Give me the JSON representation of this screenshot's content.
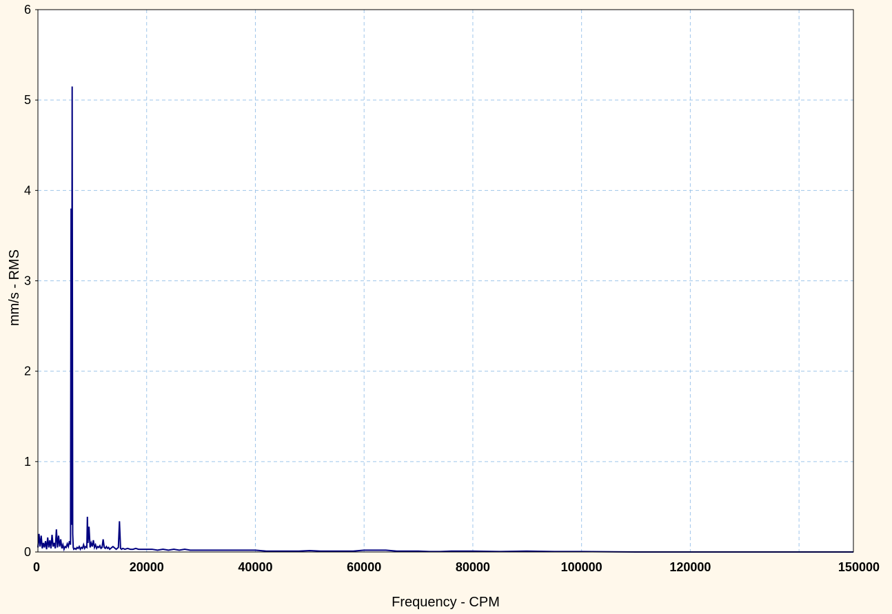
{
  "chart_data": {
    "type": "line",
    "title": "",
    "xlabel": "Frequency - CPM",
    "ylabel": "mm/s - RMS",
    "xlim": [
      0,
      150000
    ],
    "ylim": [
      0,
      6
    ],
    "xticks": [
      0,
      20000,
      40000,
      60000,
      80000,
      100000,
      120000,
      150000
    ],
    "yticks": [
      0,
      1,
      2,
      3,
      4,
      5,
      6
    ],
    "grid": true,
    "grid_style": "dashed",
    "legend": "none",
    "colors": {
      "line": "#000080",
      "grid": "#9ec5ea",
      "plot_background": "#ffffff",
      "page_background": "#fff8eb",
      "axis": "#000000"
    },
    "series": [
      {
        "x": [
          0,
          200,
          400,
          600,
          800,
          1000,
          1200,
          1400,
          1600,
          1800,
          2000,
          2200,
          2400,
          2600,
          2800,
          3000,
          3200,
          3400,
          3600,
          3800,
          4000,
          4200,
          4400,
          4600,
          4800,
          5000,
          5200,
          5400,
          5600,
          5800,
          6000,
          6100,
          6200,
          6300,
          6400,
          6500,
          6600,
          6800,
          7000,
          7200,
          7400,
          7600,
          7800,
          8000,
          8200,
          8400,
          8600,
          8800,
          9000,
          9100,
          9200,
          9400,
          9600,
          9800,
          10000,
          10200,
          10400,
          10600,
          10800,
          11000,
          11200,
          11400,
          11600,
          11800,
          12000,
          12200,
          12400,
          12600,
          12800,
          13000,
          13200,
          13400,
          13600,
          13800,
          14000,
          14200,
          14400,
          14600,
          14800,
          15000,
          15200,
          15400,
          15600,
          16000,
          16500,
          17000,
          17500,
          18000,
          18500,
          19000,
          20000,
          21000,
          22000,
          23000,
          24000,
          25000,
          26000,
          27000,
          28000,
          30000,
          32000,
          34000,
          36000,
          38000,
          40000,
          42000,
          44000,
          46000,
          48000,
          50000,
          52000,
          54000,
          56000,
          58000,
          60000,
          62000,
          64000,
          66000,
          68000,
          70000,
          72000,
          74000,
          76000,
          78000,
          80000,
          85000,
          90000,
          95000,
          100000,
          110000,
          120000,
          130000,
          140000,
          150000
        ],
        "y": [
          0.05,
          0.2,
          0.06,
          0.18,
          0.04,
          0.1,
          0.05,
          0.12,
          0.03,
          0.16,
          0.05,
          0.13,
          0.04,
          0.19,
          0.06,
          0.1,
          0.04,
          0.25,
          0.05,
          0.18,
          0.06,
          0.14,
          0.04,
          0.08,
          0.03,
          0.06,
          0.05,
          0.09,
          0.06,
          0.12,
          0.08,
          3.8,
          0.3,
          5.15,
          0.2,
          0.05,
          0.03,
          0.04,
          0.03,
          0.05,
          0.04,
          0.06,
          0.03,
          0.05,
          0.04,
          0.08,
          0.04,
          0.06,
          0.05,
          0.39,
          0.1,
          0.28,
          0.05,
          0.1,
          0.06,
          0.13,
          0.05,
          0.08,
          0.04,
          0.06,
          0.05,
          0.07,
          0.04,
          0.05,
          0.14,
          0.05,
          0.04,
          0.06,
          0.04,
          0.05,
          0.03,
          0.04,
          0.05,
          0.06,
          0.05,
          0.04,
          0.03,
          0.04,
          0.05,
          0.34,
          0.04,
          0.03,
          0.04,
          0.03,
          0.04,
          0.03,
          0.03,
          0.04,
          0.03,
          0.03,
          0.03,
          0.03,
          0.02,
          0.03,
          0.02,
          0.03,
          0.02,
          0.03,
          0.02,
          0.02,
          0.02,
          0.02,
          0.02,
          0.02,
          0.02,
          0.01,
          0.01,
          0.01,
          0.01,
          0.015,
          0.01,
          0.01,
          0.01,
          0.01,
          0.02,
          0.02,
          0.02,
          0.01,
          0.01,
          0.01,
          0.005,
          0.005,
          0.01,
          0.01,
          0.01,
          0.005,
          0.01,
          0.005,
          0.005,
          0,
          0,
          0,
          0,
          0
        ]
      }
    ]
  }
}
